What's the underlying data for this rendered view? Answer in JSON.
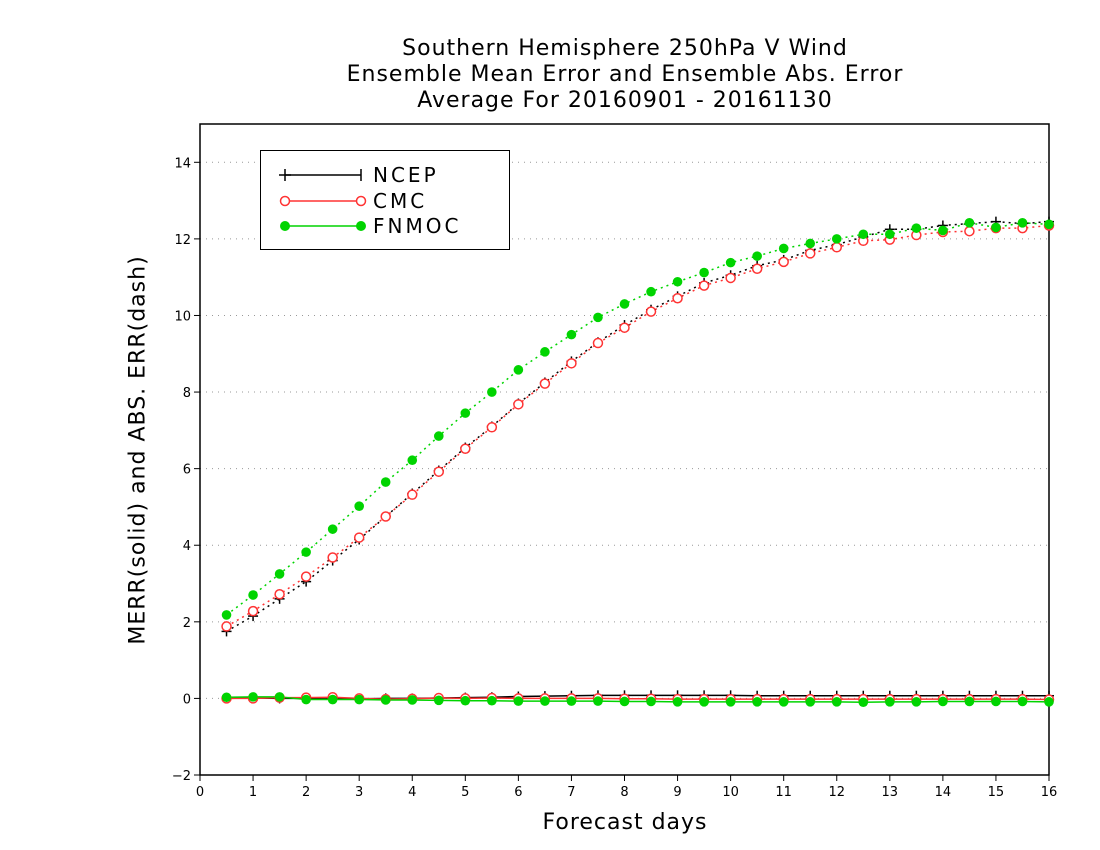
{
  "chart_data": {
    "type": "line",
    "title": [
      "Southern Hemisphere 250hPa V Wind",
      "Ensemble Mean Error and Ensemble Abs. Error",
      "Average For 20160901 - 20161130"
    ],
    "xlabel": "Forecast days",
    "ylabel": "MERR(solid) and ABS. ERR(dash)",
    "xlim": [
      0,
      16
    ],
    "ylim": [
      -2,
      15
    ],
    "xticks": [
      0,
      1,
      2,
      3,
      4,
      5,
      6,
      7,
      8,
      9,
      10,
      11,
      12,
      13,
      14,
      15,
      16
    ],
    "yticks": [
      -2,
      0,
      2,
      4,
      6,
      8,
      10,
      12,
      14
    ],
    "grid": true,
    "legend_position": "top-left",
    "x": [
      0.5,
      1,
      1.5,
      2,
      2.5,
      3,
      3.5,
      4,
      4.5,
      5,
      5.5,
      6,
      6.5,
      7,
      7.5,
      8,
      8.5,
      9,
      9.5,
      10,
      10.5,
      11,
      11.5,
      12,
      12.5,
      13,
      13.5,
      14,
      14.5,
      15,
      15.5,
      16
    ],
    "series": [
      {
        "name": "NCEP",
        "color": "#000000",
        "marker": "plus",
        "abs_err": [
          1.75,
          2.15,
          2.6,
          3.05,
          3.6,
          4.15,
          4.75,
          5.35,
          5.95,
          6.55,
          7.1,
          7.7,
          8.25,
          8.8,
          9.3,
          9.75,
          10.15,
          10.5,
          10.85,
          11.05,
          11.3,
          11.45,
          11.7,
          11.85,
          12.05,
          12.25,
          12.25,
          12.35,
          12.4,
          12.45,
          12.4,
          12.45
        ],
        "mean_err": [
          0.0,
          0.01,
          0.0,
          0.0,
          0.01,
          -0.01,
          0.0,
          0.0,
          0.01,
          0.02,
          0.03,
          0.05,
          0.06,
          0.07,
          0.08,
          0.08,
          0.08,
          0.08,
          0.08,
          0.08,
          0.07,
          0.07,
          0.07,
          0.07,
          0.07,
          0.07,
          0.07,
          0.07,
          0.07,
          0.07,
          0.07,
          0.07
        ]
      },
      {
        "name": "CMC",
        "color": "#ff3333",
        "marker": "open-circle",
        "abs_err": [
          1.88,
          2.28,
          2.72,
          3.18,
          3.68,
          4.2,
          4.75,
          5.32,
          5.92,
          6.52,
          7.08,
          7.68,
          8.22,
          8.75,
          9.28,
          9.68,
          10.1,
          10.45,
          10.78,
          10.98,
          11.22,
          11.4,
          11.62,
          11.78,
          11.95,
          11.98,
          12.1,
          12.18,
          12.2,
          12.28,
          12.28,
          12.35
        ],
        "mean_err": [
          0.0,
          0.0,
          0.02,
          0.02,
          0.03,
          0.0,
          -0.02,
          -0.01,
          0.01,
          0.0,
          0.01,
          0.0,
          0.0,
          0.0,
          0.0,
          -0.01,
          -0.01,
          -0.02,
          -0.02,
          -0.02,
          -0.02,
          -0.02,
          -0.02,
          -0.02,
          -0.02,
          -0.02,
          -0.02,
          -0.02,
          -0.02,
          -0.02,
          -0.02,
          -0.03
        ]
      },
      {
        "name": "FNMOC",
        "color": "#00d400",
        "marker": "filled-circle",
        "abs_err": [
          2.18,
          2.7,
          3.25,
          3.82,
          4.42,
          5.02,
          5.65,
          6.22,
          6.85,
          7.45,
          8.0,
          8.58,
          9.05,
          9.5,
          9.95,
          10.3,
          10.62,
          10.88,
          11.12,
          11.38,
          11.55,
          11.75,
          11.88,
          12.0,
          12.12,
          12.12,
          12.28,
          12.22,
          12.42,
          12.3,
          12.42,
          12.38
        ],
        "mean_err": [
          0.03,
          0.04,
          0.04,
          -0.03,
          -0.03,
          -0.03,
          -0.04,
          -0.04,
          -0.05,
          -0.06,
          -0.06,
          -0.07,
          -0.07,
          -0.07,
          -0.07,
          -0.08,
          -0.08,
          -0.09,
          -0.09,
          -0.09,
          -0.09,
          -0.09,
          -0.09,
          -0.09,
          -0.1,
          -0.09,
          -0.09,
          -0.08,
          -0.08,
          -0.08,
          -0.08,
          -0.09
        ]
      }
    ]
  }
}
